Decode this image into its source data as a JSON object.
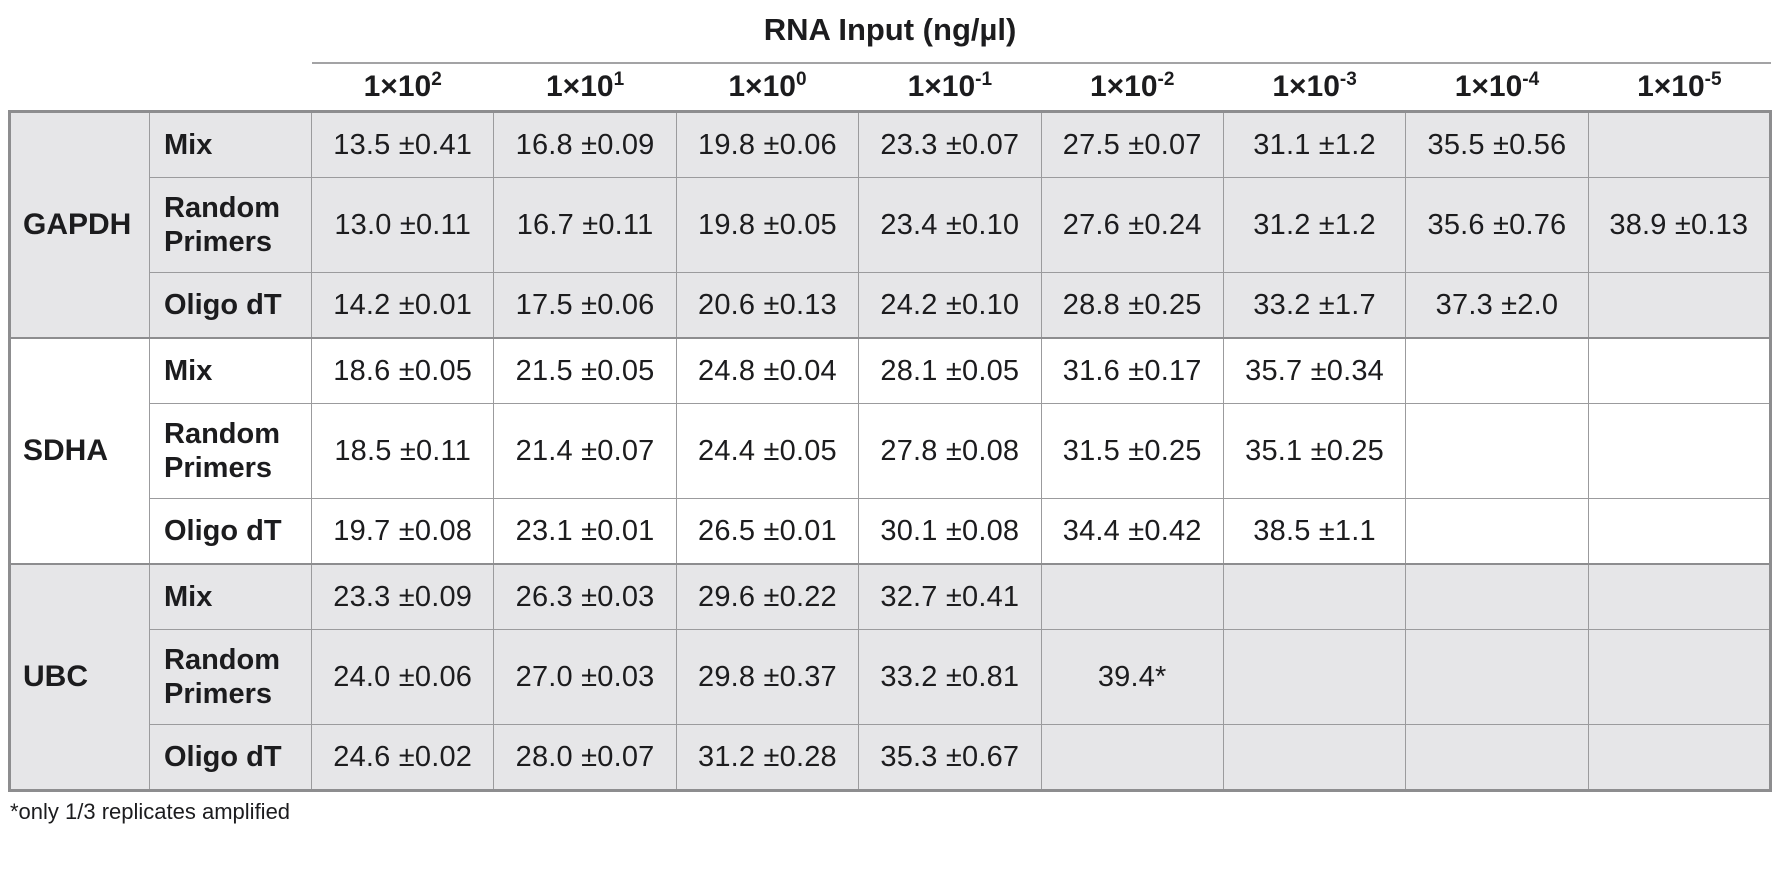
{
  "chart_data": {
    "type": "table",
    "title": "RNA Input (ng/µl)",
    "footnote": "*only 1/3 replicates amplified",
    "column_headers": [
      {
        "label": "1×10²",
        "base": "1×10",
        "exp": "2"
      },
      {
        "label": "1×10¹",
        "base": "1×10",
        "exp": "1"
      },
      {
        "label": "1×10⁰",
        "base": "1×10",
        "exp": "0"
      },
      {
        "label": "1×10⁻¹",
        "base": "1×10",
        "exp": "-1"
      },
      {
        "label": "1×10⁻²",
        "base": "1×10",
        "exp": "-2"
      },
      {
        "label": "1×10⁻³",
        "base": "1×10",
        "exp": "-3"
      },
      {
        "label": "1×10⁻⁴",
        "base": "1×10",
        "exp": "-4"
      },
      {
        "label": "1×10⁻⁵",
        "base": "1×10",
        "exp": "-5"
      }
    ],
    "row_groups": [
      {
        "gene": "GAPDH",
        "shaded": true,
        "rows": [
          {
            "primer": "Mix",
            "values": [
              "13.5 ±0.41",
              "16.8 ±0.09",
              "19.8 ±0.06",
              "23.3 ±0.07",
              "27.5 ±0.07",
              "31.1 ±1.2",
              "35.5 ±0.56",
              ""
            ]
          },
          {
            "primer": "Random Primers",
            "values": [
              "13.0 ±0.11",
              "16.7 ±0.11",
              "19.8 ±0.05",
              "23.4 ±0.10",
              "27.6 ±0.24",
              "31.2 ±1.2",
              "35.6 ±0.76",
              "38.9 ±0.13"
            ]
          },
          {
            "primer": "Oligo dT",
            "values": [
              "14.2 ±0.01",
              "17.5 ±0.06",
              "20.6 ±0.13",
              "24.2 ±0.10",
              "28.8 ±0.25",
              "33.2 ±1.7",
              "37.3 ±2.0",
              ""
            ]
          }
        ]
      },
      {
        "gene": "SDHA",
        "shaded": false,
        "rows": [
          {
            "primer": "Mix",
            "values": [
              "18.6 ±0.05",
              "21.5 ±0.05",
              "24.8 ±0.04",
              "28.1 ±0.05",
              "31.6 ±0.17",
              "35.7 ±0.34",
              "",
              ""
            ]
          },
          {
            "primer": "Random Primers",
            "values": [
              "18.5 ±0.11",
              "21.4 ±0.07",
              "24.4 ±0.05",
              "27.8 ±0.08",
              "31.5 ±0.25",
              "35.1 ±0.25",
              "",
              ""
            ]
          },
          {
            "primer": "Oligo dT",
            "values": [
              "19.7 ±0.08",
              "23.1 ±0.01",
              "26.5 ±0.01",
              "30.1 ±0.08",
              "34.4 ±0.42",
              "38.5 ±1.1",
              "",
              ""
            ]
          }
        ]
      },
      {
        "gene": "UBC",
        "shaded": true,
        "rows": [
          {
            "primer": "Mix",
            "values": [
              "23.3 ±0.09",
              "26.3 ±0.03",
              "29.6 ±0.22",
              "32.7 ±0.41",
              "",
              "",
              "",
              ""
            ]
          },
          {
            "primer": "Random Primers",
            "values": [
              "24.0 ±0.06",
              "27.0 ±0.03",
              "29.8 ±0.37",
              "33.2 ±0.81",
              "39.4*",
              "",
              "",
              ""
            ]
          },
          {
            "primer": "Oligo dT",
            "values": [
              "24.6 ±0.02",
              "28.0 ±0.07",
              "31.2 ±0.28",
              "35.3 ±0.67",
              "",
              "",
              "",
              ""
            ]
          }
        ]
      }
    ],
    "colors": {
      "text": "#1c1c1e",
      "group_shade": "#e6e6e8",
      "border": "#9b9b9d",
      "border_heavy": "#8d8d8f",
      "rule": "#a3a3a5",
      "page_bg": "#ffffff"
    }
  }
}
